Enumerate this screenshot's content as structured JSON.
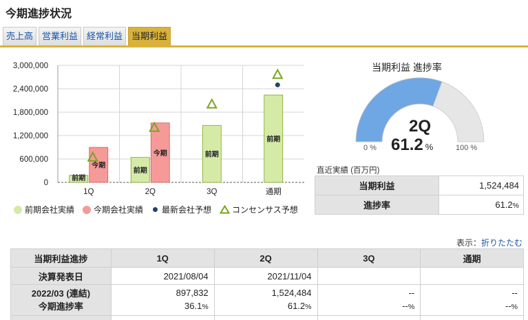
{
  "page_title": "今期進捗状況",
  "tabs": [
    {
      "label": "売上高",
      "active": false
    },
    {
      "label": "営業利益",
      "active": false
    },
    {
      "label": "経常利益",
      "active": false
    },
    {
      "label": "当期利益",
      "active": true
    }
  ],
  "colors": {
    "accent": "#d8b23a",
    "prev_bar": "#d6eaa8",
    "curr_bar": "#f59a98",
    "forecast_dot": "#23416e",
    "consensus": "#7aa51c",
    "gauge_fill": "#6fa7e4",
    "gauge_track": "#e6e6e6"
  },
  "chart_data": {
    "type": "bar",
    "categories": [
      "1Q",
      "2Q",
      "3Q",
      "通期"
    ],
    "yticks": [
      "3,000,000",
      "2,400,000",
      "1,800,000",
      "1,200,000",
      "600,000",
      "0"
    ],
    "ylim": [
      0,
      3000000
    ],
    "series": [
      {
        "name": "前期会社実績",
        "label": "前期",
        "values": [
          180000,
          640000,
          1460000,
          2240000
        ]
      },
      {
        "name": "今期会社実績",
        "label": "今期",
        "values": [
          897832,
          1524484,
          null,
          null
        ]
      },
      {
        "name": "最新会社予想",
        "values": [
          null,
          null,
          null,
          2500000
        ]
      },
      {
        "name": "コンセンサス予想",
        "values": [
          640000,
          1400000,
          2000000,
          2760000
        ]
      }
    ],
    "grid": true
  },
  "legend": [
    {
      "label": "前期会社実績",
      "shape": "circle"
    },
    {
      "label": "今期会社実績",
      "shape": "circle"
    },
    {
      "label": "最新会社予想",
      "shape": "dot"
    },
    {
      "label": "コンセンサス予想",
      "shape": "triangle"
    }
  ],
  "gauge": {
    "title": "当期利益 進捗率",
    "quarter": "2Q",
    "value": "61.2",
    "percent": 61.2,
    "unit": "%",
    "min_label": "0 %",
    "max_label": "100 %"
  },
  "recent": {
    "caption": "直近実績 (百万円)",
    "rows": [
      {
        "label": "当期利益",
        "value": "1,524,484",
        "unit": ""
      },
      {
        "label": "進捗率",
        "value": "61.2",
        "unit": "%"
      }
    ]
  },
  "display": {
    "label": "表示：",
    "link": "折りたたむ"
  },
  "progress_table": {
    "headers": [
      "当期利益進捗",
      "1Q",
      "2Q",
      "3Q",
      "通期"
    ],
    "announce_label": "決算発表日",
    "announce_dates": [
      "2021/08/04",
      "2021/11/04",
      "",
      ""
    ],
    "period_label": "2022/03 (連結)",
    "progress_label": "今期進捗率",
    "values": [
      "897,832",
      "1,524,484",
      "--",
      "--"
    ],
    "rates": [
      "36.1",
      "61.2",
      "--",
      "--"
    ],
    "rate_unit": "%"
  }
}
